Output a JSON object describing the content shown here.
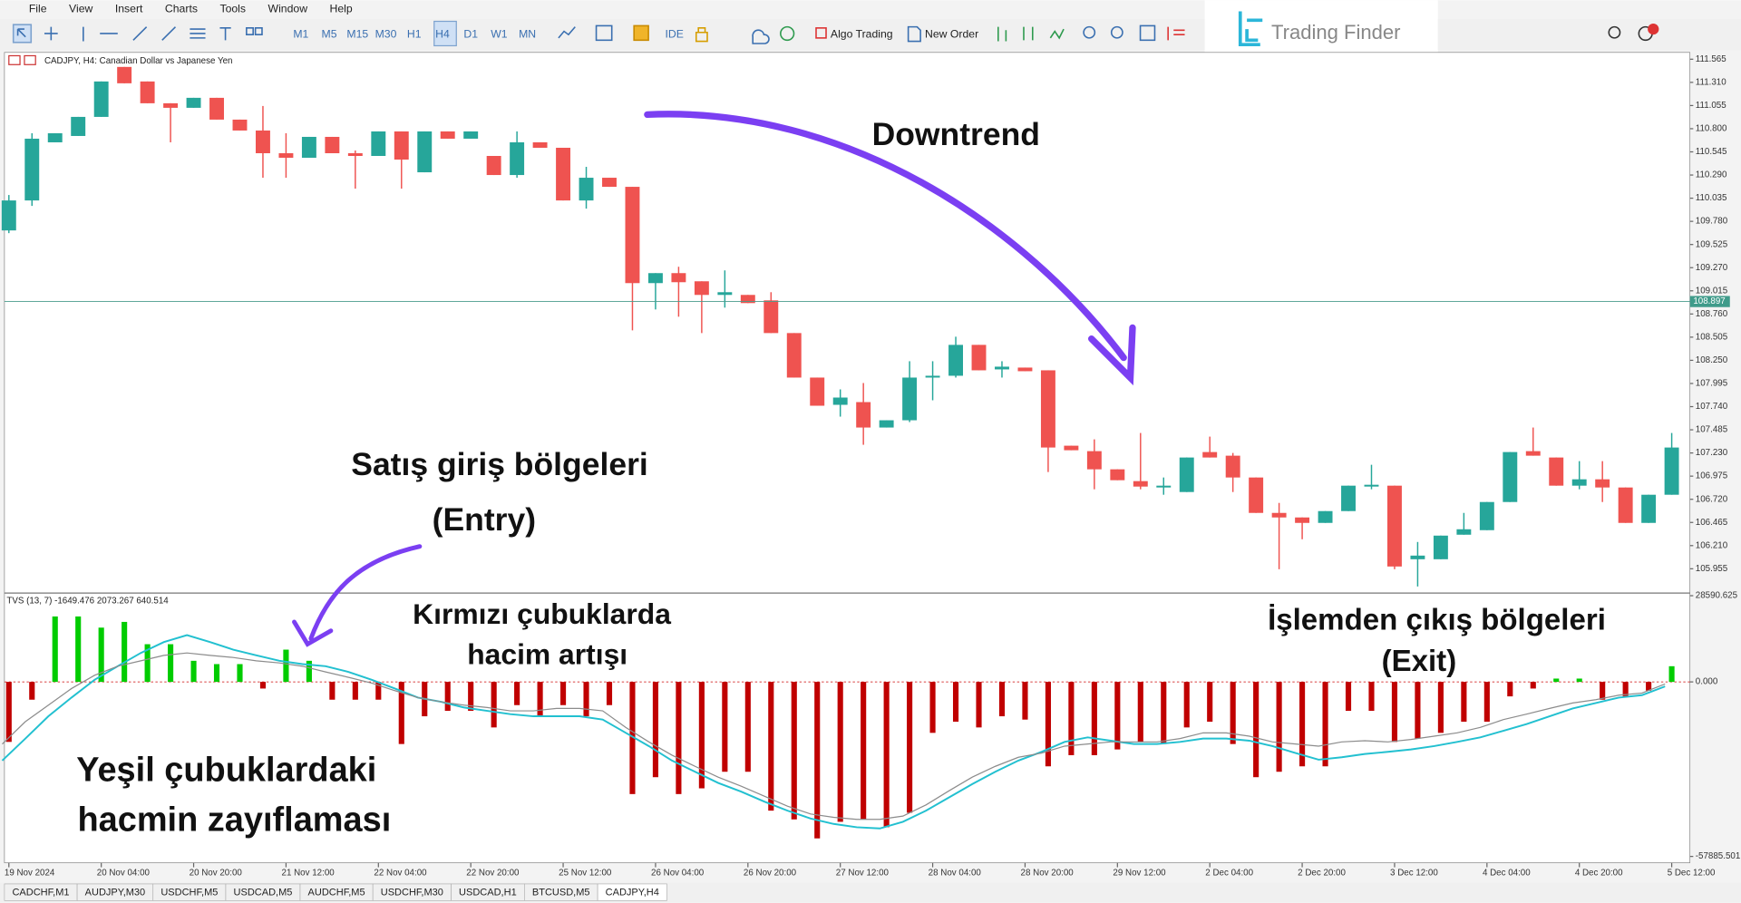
{
  "menu": [
    "File",
    "View",
    "Insert",
    "Charts",
    "Tools",
    "Window",
    "Help"
  ],
  "timeframes": [
    "M1",
    "M5",
    "M15",
    "M30",
    "H1",
    "H4",
    "D1",
    "W1",
    "MN"
  ],
  "toolbar": {
    "ide": "IDE",
    "algo": "Algo Trading",
    "order": "New Order"
  },
  "logo": "Trading Finder",
  "tabs": [
    "CADCHF,M1",
    "AUDJPY,M30",
    "USDCHF,M5",
    "USDCAD,M5",
    "AUDCHF,M5",
    "USDCHF,M30",
    "USDCAD,H1",
    "BTCUSD,M5",
    "CADJPY,H4"
  ],
  "chart_data": [
    {
      "type": "candlestick",
      "title": "CADJPY, H4:  Canadian Dollar vs Japanese Yen",
      "up_color": "#26a69a",
      "down_color": "#ef5350",
      "ylim": [
        105.7,
        111.64
      ],
      "yticks": [
        111.565,
        {
          "value": 111.31,
          "label": "111.310"
        },
        111.055,
        {
          "value": 110.8,
          "label": "110.800"
        },
        110.545,
        {
          "value": 110.29,
          "label": "110.290"
        },
        110.035,
        {
          "value": 109.78,
          "label": "109.780"
        },
        109.525,
        {
          "value": 109.27,
          "label": "109.270"
        },
        109.015,
        {
          "value": 108.76,
          "label": "108.760"
        },
        108.505,
        {
          "value": 108.25,
          "label": "108.250"
        },
        107.995,
        {
          "value": 107.74,
          "label": "107.740"
        },
        107.485,
        {
          "value": 107.23,
          "label": "107.230"
        },
        106.975,
        {
          "value": 106.72,
          "label": "106.720"
        },
        106.465,
        {
          "value": 106.21,
          "label": "106.210"
        },
        105.955
      ],
      "current_price": 108.897,
      "categories": [
        "19 Nov 2024",
        null,
        null,
        null,
        "20 Nov 04:00",
        null,
        null,
        null,
        "20 Nov 20:00",
        null,
        null,
        null,
        "21 Nov 12:00",
        null,
        null,
        null,
        "22 Nov 04:00",
        null,
        null,
        null,
        "22 Nov 20:00",
        null,
        null,
        null,
        "25 Nov 12:00",
        null,
        null,
        null,
        "26 Nov 04:00",
        null,
        null,
        null,
        "26 Nov 20:00",
        null,
        null,
        null,
        "27 Nov 12:00",
        null,
        null,
        null,
        "28 Nov 04:00",
        null,
        null,
        null,
        "28 Nov 20:00",
        null,
        null,
        null,
        "29 Nov 12:00",
        null,
        null,
        null,
        "2 Dec 04:00",
        null,
        null,
        null,
        "2 Dec 20:00",
        null,
        null,
        null,
        "3 Dec 12:00",
        null,
        null,
        null,
        "4 Dec 04:00",
        null,
        null,
        null,
        "4 Dec 20:00",
        null,
        null,
        null,
        "5 Dec 12:00"
      ],
      "values": [
        [
          109.68,
          110.07,
          109.65,
          110.01
        ],
        [
          110.01,
          110.75,
          109.95,
          110.69
        ],
        [
          110.65,
          110.75,
          110.65,
          110.75
        ],
        [
          110.72,
          110.93,
          110.72,
          110.93
        ],
        [
          110.93,
          111.32,
          110.93,
          111.32
        ],
        [
          111.48,
          111.48,
          111.3,
          111.3
        ],
        [
          111.32,
          111.32,
          111.08,
          111.08
        ],
        [
          111.08,
          111.08,
          110.65,
          111.03
        ],
        [
          111.03,
          111.14,
          111.03,
          111.14
        ],
        [
          111.14,
          111.14,
          110.9,
          110.9
        ],
        [
          110.9,
          110.9,
          110.78,
          110.78
        ],
        [
          110.78,
          111.05,
          110.26,
          110.53
        ],
        [
          110.53,
          110.75,
          110.26,
          110.48
        ],
        [
          110.48,
          110.71,
          110.48,
          110.71
        ],
        [
          110.71,
          110.71,
          110.53,
          110.53
        ],
        [
          110.53,
          110.56,
          110.14,
          110.5
        ],
        [
          110.5,
          110.77,
          110.5,
          110.77
        ],
        [
          110.77,
          110.77,
          110.14,
          110.46
        ],
        [
          110.32,
          110.77,
          110.32,
          110.77
        ],
        [
          110.77,
          110.77,
          110.69,
          110.69
        ],
        [
          110.69,
          110.77,
          110.69,
          110.77
        ],
        [
          110.5,
          110.5,
          110.29,
          110.29
        ],
        [
          110.29,
          110.77,
          110.26,
          110.65
        ],
        [
          110.65,
          110.65,
          110.59,
          110.59
        ],
        [
          110.59,
          110.59,
          110.01,
          110.01
        ],
        [
          110.01,
          110.38,
          109.92,
          110.26
        ],
        [
          110.26,
          110.26,
          110.16,
          110.16
        ],
        [
          110.16,
          110.16,
          108.58,
          109.1
        ],
        [
          109.1,
          109.21,
          108.81,
          109.21
        ],
        [
          109.21,
          109.28,
          108.73,
          109.11
        ],
        [
          109.12,
          109.12,
          108.55,
          108.97
        ],
        [
          108.97,
          109.24,
          108.83,
          109.0
        ],
        [
          108.97,
          108.97,
          108.88,
          108.88
        ],
        [
          108.91,
          109.0,
          108.55,
          108.55
        ],
        [
          108.55,
          108.55,
          108.06,
          108.06
        ],
        [
          108.06,
          108.06,
          107.75,
          107.75
        ],
        [
          107.76,
          107.93,
          107.63,
          107.84
        ],
        [
          107.79,
          108.0,
          107.32,
          107.51
        ],
        [
          107.51,
          107.59,
          107.51,
          107.59
        ],
        [
          107.59,
          108.24,
          107.57,
          108.06
        ],
        [
          108.06,
          108.24,
          107.81,
          108.08
        ],
        [
          108.08,
          108.51,
          108.06,
          108.42
        ],
        [
          108.42,
          108.42,
          108.14,
          108.14
        ],
        [
          108.15,
          108.24,
          108.06,
          108.18
        ],
        [
          108.17,
          108.17,
          108.13,
          108.13
        ],
        [
          108.14,
          108.14,
          107.02,
          107.29
        ],
        [
          107.31,
          107.31,
          107.26,
          107.26
        ],
        [
          107.25,
          107.38,
          106.83,
          107.05
        ],
        [
          107.05,
          107.05,
          106.93,
          106.93
        ],
        [
          106.92,
          107.45,
          106.83,
          106.86
        ],
        [
          106.85,
          106.96,
          106.77,
          106.87
        ],
        [
          106.8,
          107.18,
          106.8,
          107.18
        ],
        [
          107.24,
          107.41,
          107.18,
          107.18
        ],
        [
          107.2,
          107.23,
          106.8,
          106.96
        ],
        [
          106.96,
          106.96,
          106.57,
          106.57
        ],
        [
          106.57,
          106.68,
          105.95,
          106.52
        ],
        [
          106.52,
          106.52,
          106.28,
          106.46
        ],
        [
          106.46,
          106.59,
          106.46,
          106.59
        ],
        [
          106.59,
          106.87,
          106.59,
          106.87
        ],
        [
          106.86,
          107.1,
          106.83,
          106.88
        ],
        [
          106.87,
          106.87,
          105.95,
          105.98
        ],
        [
          106.06,
          106.25,
          105.76,
          106.1
        ],
        [
          106.06,
          106.32,
          106.06,
          106.32
        ],
        [
          106.33,
          106.57,
          106.33,
          106.39
        ],
        [
          106.38,
          106.69,
          106.38,
          106.69
        ],
        [
          106.69,
          107.24,
          106.69,
          107.24
        ],
        [
          107.25,
          107.51,
          107.2,
          107.2
        ],
        [
          107.18,
          107.18,
          106.87,
          106.87
        ],
        [
          106.87,
          107.14,
          106.83,
          106.94
        ],
        [
          106.94,
          107.14,
          106.69,
          106.85
        ],
        [
          106.85,
          106.85,
          106.46,
          106.46
        ],
        [
          106.46,
          106.77,
          106.46,
          106.77
        ],
        [
          106.77,
          107.45,
          106.77,
          107.29
        ]
      ],
      "annotations": [
        "Downtrend",
        "Satış giriş bölgeleri",
        "(Entry)"
      ]
    },
    {
      "type": "bar",
      "title": "TVS (13, 7) -1649.476 2073.267 640.514",
      "up_color": "#00cc00",
      "down_color": "#c00000",
      "ylim": [
        -60000,
        29100
      ],
      "yticks": [
        28590.625,
        {
          "value": 0,
          "label": "0.000"
        },
        -57885.501
      ],
      "values": [
        -19900,
        -5900,
        21700,
        21700,
        18000,
        19900,
        12500,
        12500,
        7000,
        5900,
        5900,
        -2200,
        10700,
        7000,
        -5900,
        -5900,
        -5900,
        -20600,
        -11400,
        -9600,
        -9600,
        -15100,
        -7700,
        -11400,
        -7700,
        -11400,
        -7700,
        -37200,
        -31600,
        -37200,
        -35300,
        -29800,
        -29800,
        -42700,
        -45600,
        -51900,
        -46400,
        -45600,
        -48200,
        -43400,
        -16900,
        -13200,
        -15100,
        -11400,
        -12500,
        -28000,
        -24300,
        -24300,
        -22400,
        -19900,
        -20600,
        -15100,
        -13200,
        -20600,
        -31600,
        -29800,
        -28000,
        -28000,
        -9600,
        -9600,
        -19900,
        -18800,
        -16900,
        -13200,
        -13200,
        -4800,
        -2200,
        1100,
        1100,
        -5900,
        -4800,
        -2900,
        5200
      ],
      "lines": [
        {
          "color": "#22c0d0",
          "values": [
            -26100,
            -18800,
            -11400,
            -5200,
            700,
            5200,
            9600,
            13200,
            15500,
            13200,
            10700,
            8800,
            7000,
            5900,
            5200,
            3300,
            700,
            -2200,
            -5200,
            -6600,
            -8500,
            -9600,
            -10700,
            -11400,
            -11400,
            -11400,
            -12500,
            -16900,
            -21300,
            -26100,
            -29800,
            -33500,
            -36400,
            -39700,
            -42700,
            -45300,
            -47100,
            -48200,
            -48600,
            -46400,
            -42700,
            -38300,
            -33900,
            -29800,
            -26100,
            -23200,
            -19900,
            -18400,
            -19500,
            -20600,
            -20600,
            -19900,
            -18800,
            -18800,
            -19500,
            -21300,
            -23600,
            -25800,
            -25000,
            -23900,
            -23200,
            -22400,
            -21300,
            -19900,
            -18400,
            -16200,
            -14000,
            -11400,
            -8800,
            -7000,
            -5200,
            -4400,
            -1500
          ]
        },
        {
          "color": "#8c8c8c",
          "values": [
            -20600,
            -13200,
            -7700,
            -2200,
            2200,
            5200,
            7000,
            8800,
            9600,
            8800,
            8100,
            7000,
            6300,
            5200,
            3300,
            1500,
            -400,
            -2900,
            -5200,
            -6600,
            -7700,
            -8500,
            -9600,
            -9600,
            -8800,
            -8800,
            -9600,
            -15100,
            -19900,
            -24300,
            -28000,
            -31600,
            -34600,
            -37900,
            -41200,
            -43800,
            -44900,
            -45600,
            -45600,
            -44500,
            -40800,
            -36100,
            -31600,
            -28000,
            -25000,
            -23600,
            -21300,
            -20600,
            -19900,
            -19900,
            -19900,
            -18800,
            -16900,
            -16900,
            -18000,
            -19900,
            -20600,
            -21300,
            -19900,
            -19500,
            -19900,
            -19100,
            -18000,
            -16900,
            -15100,
            -12500,
            -10700,
            -8800,
            -7000,
            -5900,
            -4400,
            -3700,
            -700
          ]
        }
      ],
      "annotations": [
        "Kırmızı çubuklarda",
        "hacim artışı",
        "İşlemden çıkış bölgeleri",
        "(Exit)",
        "Yeşil çubuklardaki",
        "hacmin zayıflaması"
      ]
    }
  ]
}
